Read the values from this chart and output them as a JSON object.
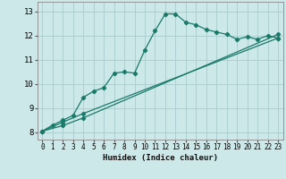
{
  "bg_color": "#cce8e8",
  "grid_color": "#aacccc",
  "line_color": "#1a7a6a",
  "xlabel": "Humidex (Indice chaleur)",
  "xlim": [
    -0.5,
    23.5
  ],
  "ylim": [
    7.7,
    13.4
  ],
  "xticks": [
    0,
    1,
    2,
    3,
    4,
    5,
    6,
    7,
    8,
    9,
    10,
    11,
    12,
    13,
    14,
    15,
    16,
    17,
    18,
    19,
    20,
    21,
    22,
    23
  ],
  "yticks": [
    8,
    9,
    10,
    11,
    12,
    13
  ],
  "curve1_x": [
    0,
    1,
    2,
    3,
    4,
    5,
    6,
    7,
    8,
    9,
    10,
    11,
    12,
    13,
    14,
    15,
    16,
    17,
    18,
    19,
    20,
    21,
    22,
    23
  ],
  "curve1_y": [
    8.05,
    8.3,
    8.5,
    8.7,
    9.45,
    9.7,
    9.85,
    10.45,
    10.5,
    10.45,
    11.4,
    12.2,
    12.9,
    12.9,
    12.55,
    12.45,
    12.25,
    12.15,
    12.05,
    11.85,
    11.95,
    11.85,
    12.0,
    11.9
  ],
  "curve2_x": [
    0,
    2,
    4,
    23
  ],
  "curve2_y": [
    8.05,
    8.28,
    8.6,
    12.05
  ],
  "curve3_x": [
    0,
    2,
    4,
    23
  ],
  "curve3_y": [
    8.05,
    8.42,
    8.78,
    11.9
  ],
  "marker": "D",
  "markersize": 2.2,
  "linewidth": 0.9
}
